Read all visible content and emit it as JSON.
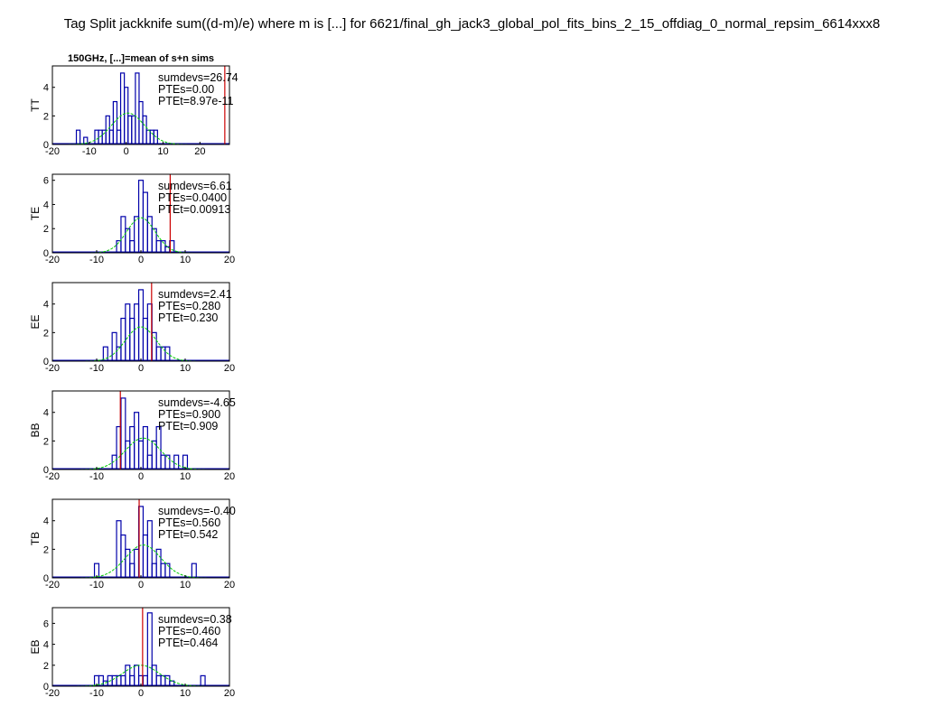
{
  "figure": {
    "title": "Tag Split jackknife sum((d-m)/e) where m is [...] for 6621/final_gh_jack3_global_pol_fits_bins_2_15_offdiag_0_normal_repsim_6614xxx8",
    "panel_title": "150GHz, [...]=mean of s+n sims"
  },
  "colors": {
    "histogram": "#0000aa",
    "gaussian": "#00cc00",
    "observed_line": "#cc0000",
    "axes": "#000000"
  },
  "chart_data": [
    {
      "type": "histogram",
      "ylabel": "TT",
      "xlim": [
        -20,
        28
      ],
      "ylim": [
        0,
        5.5
      ],
      "xticks": [
        -20,
        -10,
        0,
        10,
        20
      ],
      "yticks": [
        0,
        2,
        4
      ],
      "observed": 26.74,
      "gaussian": {
        "mean": 0.5,
        "sigma": 4.5,
        "peak": 2.2,
        "range": [
          -20,
          23
        ]
      },
      "bins": [
        [
          -13,
          1
        ],
        [
          -11,
          0.5
        ],
        [
          -8,
          1
        ],
        [
          -7,
          1
        ],
        [
          -6,
          1
        ],
        [
          -5,
          2
        ],
        [
          -4,
          1
        ],
        [
          -3,
          3
        ],
        [
          -2,
          1
        ],
        [
          -1,
          5
        ],
        [
          0,
          4
        ],
        [
          1,
          2
        ],
        [
          2,
          2
        ],
        [
          3,
          5
        ],
        [
          4,
          3
        ],
        [
          5,
          2
        ],
        [
          6,
          1
        ],
        [
          7,
          1
        ],
        [
          8,
          1
        ]
      ],
      "annotations": [
        "sumdevs=26.74",
        "PTEs=0.00",
        "PTEt=8.97e-11"
      ]
    },
    {
      "type": "histogram",
      "ylabel": "TE",
      "xlim": [
        -20,
        20
      ],
      "ylim": [
        0,
        6.5
      ],
      "xticks": [
        -20,
        -10,
        0,
        10,
        20
      ],
      "yticks": [
        0,
        2,
        4,
        6
      ],
      "observed": 6.61,
      "gaussian": {
        "mean": 0,
        "sigma": 3.2,
        "peak": 2.9,
        "range": [
          -15,
          15
        ]
      },
      "bins": [
        [
          -5,
          1
        ],
        [
          -4,
          3
        ],
        [
          -3,
          2
        ],
        [
          -2,
          1
        ],
        [
          -1,
          3
        ],
        [
          0,
          6
        ],
        [
          1,
          5
        ],
        [
          2,
          3
        ],
        [
          3,
          2
        ],
        [
          4,
          1
        ],
        [
          5,
          1
        ],
        [
          6,
          0.5
        ],
        [
          7,
          1
        ]
      ],
      "annotations": [
        "sumdevs=6.61",
        "PTEs=0.0400",
        "PTEt=0.00913"
      ]
    },
    {
      "type": "histogram",
      "ylabel": "EE",
      "xlim": [
        -20,
        20
      ],
      "ylim": [
        0,
        5.5
      ],
      "xticks": [
        -20,
        -10,
        0,
        10,
        20
      ],
      "yticks": [
        0,
        2,
        4
      ],
      "observed": 2.41,
      "gaussian": {
        "mean": 0,
        "sigma": 3.5,
        "peak": 2.4,
        "range": [
          -18,
          18
        ]
      },
      "bins": [
        [
          -8,
          1
        ],
        [
          -6,
          2
        ],
        [
          -5,
          1
        ],
        [
          -4,
          3
        ],
        [
          -3,
          4
        ],
        [
          -2,
          3
        ],
        [
          -1,
          4
        ],
        [
          0,
          5
        ],
        [
          1,
          3
        ],
        [
          2,
          4
        ],
        [
          3,
          2
        ],
        [
          4,
          1
        ],
        [
          5,
          1
        ],
        [
          6,
          1
        ]
      ],
      "annotations": [
        "sumdevs=2.41",
        "PTEs=0.280",
        "PTEt=0.230"
      ]
    },
    {
      "type": "histogram",
      "ylabel": "BB",
      "xlim": [
        -20,
        20
      ],
      "ylim": [
        0,
        5.5
      ],
      "xticks": [
        -20,
        -10,
        0,
        10,
        20
      ],
      "yticks": [
        0,
        2,
        4
      ],
      "observed": -4.65,
      "gaussian": {
        "mean": 0.5,
        "sigma": 4.0,
        "peak": 2.2,
        "range": [
          -20,
          18
        ]
      },
      "bins": [
        [
          -6,
          1
        ],
        [
          -5,
          3
        ],
        [
          -4,
          5
        ],
        [
          -3,
          2
        ],
        [
          -2,
          3
        ],
        [
          -1,
          4
        ],
        [
          0,
          2
        ],
        [
          1,
          3
        ],
        [
          2,
          1
        ],
        [
          3,
          2
        ],
        [
          4,
          3
        ],
        [
          5,
          1
        ],
        [
          6,
          1
        ],
        [
          8,
          1
        ],
        [
          10,
          1
        ]
      ],
      "annotations": [
        "sumdevs=-4.65",
        "PTEs=0.900",
        "PTEt=0.909"
      ]
    },
    {
      "type": "histogram",
      "ylabel": "TB",
      "xlim": [
        -20,
        20
      ],
      "ylim": [
        0,
        5.5
      ],
      "xticks": [
        -20,
        -10,
        0,
        10,
        20
      ],
      "yticks": [
        0,
        2,
        4
      ],
      "observed": -0.4,
      "gaussian": {
        "mean": 0.5,
        "sigma": 4.0,
        "peak": 2.3,
        "range": [
          -20,
          18
        ]
      },
      "bins": [
        [
          -10,
          1
        ],
        [
          -5,
          4
        ],
        [
          -4,
          3
        ],
        [
          -3,
          2
        ],
        [
          -2,
          1
        ],
        [
          -1,
          2
        ],
        [
          0,
          5
        ],
        [
          1,
          3
        ],
        [
          2,
          4
        ],
        [
          3,
          1
        ],
        [
          4,
          2
        ],
        [
          5,
          1
        ],
        [
          6,
          1
        ],
        [
          12,
          1
        ]
      ],
      "annotations": [
        "sumdevs=-0.40",
        "PTEs=0.560",
        "PTEt=0.542"
      ]
    },
    {
      "type": "histogram",
      "ylabel": "EB",
      "xlim": [
        -20,
        20
      ],
      "ylim": [
        0,
        7.5
      ],
      "xticks": [
        -20,
        -10,
        0,
        10,
        20
      ],
      "yticks": [
        0,
        2,
        4,
        6
      ],
      "observed": 0.38,
      "gaussian": {
        "mean": 0,
        "sigma": 4.2,
        "peak": 2.0,
        "range": [
          -20,
          18
        ]
      },
      "bins": [
        [
          -10,
          1
        ],
        [
          -9,
          1
        ],
        [
          -8,
          0.5
        ],
        [
          -7,
          1
        ],
        [
          -6,
          1
        ],
        [
          -5,
          1
        ],
        [
          -4,
          1
        ],
        [
          -3,
          2
        ],
        [
          -2,
          1
        ],
        [
          -1,
          2
        ],
        [
          0,
          1
        ],
        [
          1,
          1
        ],
        [
          2,
          7
        ],
        [
          3,
          2
        ],
        [
          4,
          1
        ],
        [
          5,
          1
        ],
        [
          6,
          1
        ],
        [
          7,
          0.5
        ],
        [
          14,
          1
        ]
      ],
      "annotations": [
        "sumdevs=0.38",
        "PTEs=0.460",
        "PTEt=0.464"
      ]
    }
  ]
}
